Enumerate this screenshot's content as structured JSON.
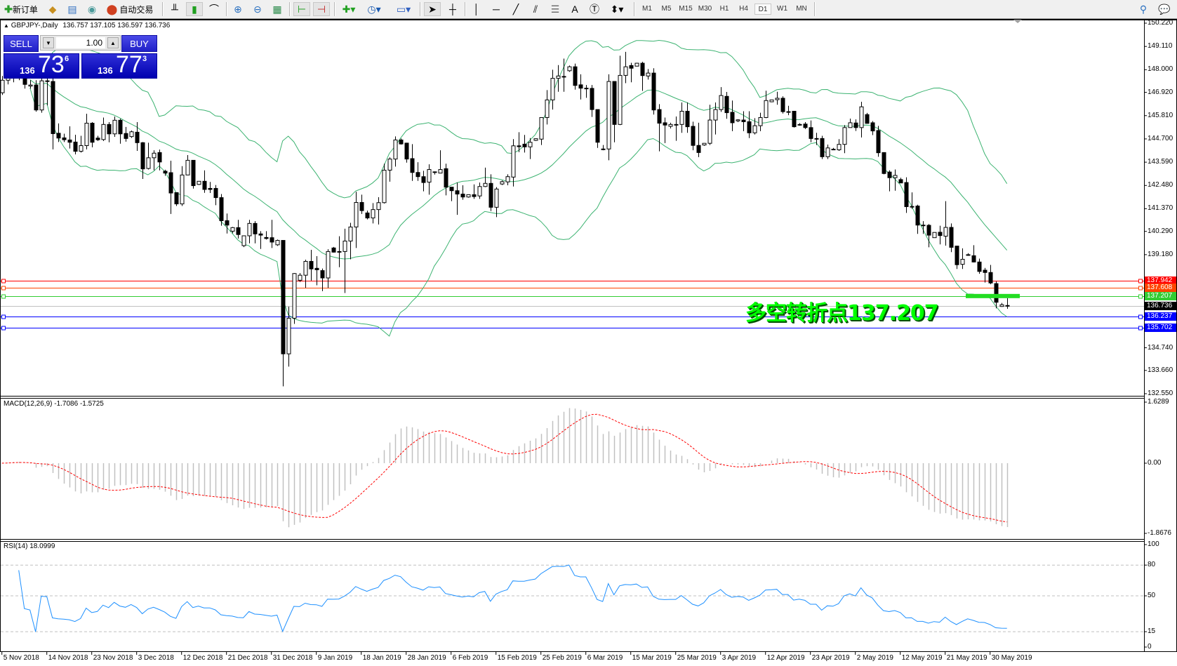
{
  "toolbar": {
    "new_order": "新订单",
    "auto_trading": "自动交易",
    "timeframes": [
      "M1",
      "M5",
      "M15",
      "M30",
      "H1",
      "H4",
      "D1",
      "W1",
      "MN"
    ],
    "active_timeframe": "D1",
    "icons": [
      "new-order-icon",
      "market-watch-icon",
      "data-window-icon",
      "navigator-icon",
      "auto-trading-icon",
      "bar-chart-icon",
      "candlestick-icon",
      "line-chart-icon",
      "zoom-in-icon",
      "zoom-out-icon",
      "tile-windows-icon",
      "auto-scroll-icon",
      "chart-shift-icon",
      "indicators-icon",
      "periods-icon",
      "templates-icon",
      "cursor-icon",
      "crosshair-icon",
      "vertical-line-icon",
      "horizontal-line-icon",
      "trendline-icon",
      "fibonacci-channel-icon",
      "fibonacci-icon",
      "text-icon",
      "text-label-icon",
      "arrows-icon",
      "search-icon",
      "chat-icon"
    ]
  },
  "chart": {
    "symbol_header": "GBPJPY-,Daily",
    "ohlc_header": "136.757 137.105 136.597 136.736"
  },
  "trade_panel": {
    "sell_label": "SELL",
    "buy_label": "BUY",
    "lot": "1.00",
    "sell": {
      "prefix": "136",
      "big": "73",
      "sup": "6"
    },
    "buy": {
      "prefix": "136",
      "big": "77",
      "sup": "3"
    }
  },
  "annotation": {
    "text": "多空转折点137.207",
    "color": "#00ff00"
  },
  "levels": [
    {
      "value": "137.942",
      "color": "#ff0000"
    },
    {
      "value": "137.608",
      "color": "#ff4500"
    },
    {
      "value": "137.207",
      "color": "#32cd32"
    },
    {
      "value": "136.736",
      "color": "#000000",
      "line_color": "#c0c0c0"
    },
    {
      "value": "136.237",
      "color": "#0000ff"
    },
    {
      "value": "135.702",
      "color": "#0000ff"
    }
  ],
  "price_axis": [
    "150.220",
    "149.110",
    "148.000",
    "146.920",
    "145.810",
    "144.700",
    "143.590",
    "142.480",
    "141.370",
    "140.290",
    "139.180",
    "134.740",
    "133.660",
    "132.550"
  ],
  "macd": {
    "label": "MACD(12,26,9) -1.7086 -1.5725",
    "axis": [
      "1.6289",
      "0.00",
      "-1.8676"
    ]
  },
  "rsi": {
    "label": "RSI(14) 18.0999",
    "axis": [
      "100",
      "80",
      "50",
      "15",
      "0"
    ]
  },
  "chart_data": {
    "type": "candlestick",
    "ylim": [
      132.55,
      150.22
    ],
    "bollinger_color": "#3cb371",
    "macd_range": [
      -1.8676,
      1.6289
    ],
    "rsi_levels": [
      80,
      50,
      15
    ],
    "x_tick_labels": [
      "5 Nov 2018",
      "14 Nov 2018",
      "23 Nov 2018",
      "3 Dec 2018",
      "12 Dec 2018",
      "21 Dec 2018",
      "31 Dec 2018",
      "9 Jan 2019",
      "18 Jan 2019",
      "28 Jan 2019",
      "6 Feb 2019",
      "15 Feb 2019",
      "25 Feb 2019",
      "6 Mar 2019",
      "15 Mar 2019",
      "25 Mar 2019",
      "3 Apr 2019",
      "12 Apr 2019",
      "23 Apr 2019",
      "2 May 2019",
      "12 May 2019",
      "21 May 2019",
      "30 May 2019"
    ],
    "ohlc": [
      [
        146.9,
        147.7,
        146.8,
        147.5
      ],
      [
        147.5,
        147.8,
        147.3,
        147.6
      ],
      [
        147.6,
        148.0,
        147.4,
        147.8
      ],
      [
        147.8,
        148.1,
        147.5,
        147.7
      ],
      [
        147.7,
        148.0,
        147.1,
        147.3
      ],
      [
        147.22,
        147.5,
        147.1,
        147.27
      ],
      [
        147.27,
        147.5,
        146.0,
        146.08
      ],
      [
        146.08,
        147.6,
        145.95,
        147.47
      ],
      [
        147.47,
        147.6,
        146.3,
        147.45
      ],
      [
        147.44,
        147.6,
        144.2,
        144.95
      ],
      [
        144.97,
        145.44,
        144.55,
        144.74
      ],
      [
        144.75,
        144.95,
        144.55,
        144.66
      ],
      [
        144.65,
        145.3,
        144.24,
        144.54
      ],
      [
        144.55,
        144.9,
        143.96,
        144.11
      ],
      [
        144.11,
        144.85,
        144.05,
        144.38
      ],
      [
        144.38,
        145.9,
        144.2,
        145.45
      ],
      [
        145.45,
        145.5,
        144.3,
        144.54
      ],
      [
        144.74,
        144.85,
        144.6,
        144.66
      ],
      [
        144.67,
        145.72,
        144.6,
        145.39
      ],
      [
        145.39,
        145.5,
        144.54,
        144.94
      ],
      [
        144.94,
        145.77,
        144.8,
        145.59
      ],
      [
        145.59,
        145.66,
        144.47,
        144.94
      ],
      [
        144.96,
        145.27,
        144.57,
        144.72
      ],
      [
        144.81,
        145.1,
        144.75,
        145.04
      ],
      [
        145.02,
        145.5,
        144.13,
        144.52
      ],
      [
        144.52,
        144.55,
        142.79,
        143.27
      ],
      [
        143.29,
        144.52,
        143.24,
        143.8
      ],
      [
        143.8,
        144.16,
        143.2,
        144.02
      ],
      [
        144.05,
        144.19,
        143.2,
        143.6
      ],
      [
        143.16,
        143.23,
        142.94,
        143.07
      ],
      [
        143.09,
        143.66,
        141.12,
        142.12
      ],
      [
        142.14,
        142.14,
        141.5,
        141.6
      ],
      [
        141.6,
        143.4,
        141.5,
        142.98
      ],
      [
        142.98,
        143.93,
        142.98,
        143.68
      ],
      [
        143.68,
        143.68,
        142.33,
        142.47
      ],
      [
        142.53,
        142.68,
        142.5,
        142.68
      ],
      [
        142.68,
        143.2,
        142.13,
        142.29
      ],
      [
        142.34,
        142.65,
        142.12,
        142.29
      ],
      [
        142.34,
        142.5,
        141.54,
        141.9
      ],
      [
        141.9,
        142.07,
        140.56,
        140.8
      ],
      [
        140.8,
        141.14,
        140.19,
        140.59
      ],
      [
        140.3,
        140.5,
        140.2,
        140.47
      ],
      [
        140.47,
        140.84,
        139.95,
        140.14
      ],
      [
        139.61,
        140.08,
        139.54,
        140.08
      ],
      [
        140.08,
        140.84,
        139.72,
        140.67
      ],
      [
        140.67,
        140.78,
        139.72,
        140.17
      ],
      [
        140.17,
        140.3,
        139.45,
        140.11
      ],
      [
        140.0,
        140.3,
        139.9,
        139.95
      ],
      [
        139.99,
        140.84,
        139.5,
        139.78
      ],
      [
        139.65,
        139.9,
        139.6,
        139.86
      ],
      [
        139.86,
        139.86,
        132.9,
        134.45
      ],
      [
        134.45,
        136.7,
        133.84,
        136.15
      ],
      [
        136.15,
        138.3,
        135.88,
        138.28
      ],
      [
        137.96,
        138.3,
        137.88,
        138.2
      ],
      [
        138.2,
        138.94,
        137.6,
        138.86
      ],
      [
        138.86,
        139.41,
        137.94,
        138.5
      ],
      [
        138.53,
        139.11,
        137.72,
        138.46
      ],
      [
        138.42,
        138.52,
        137.44,
        138.07
      ],
      [
        138.07,
        139.44,
        137.6,
        139.33
      ],
      [
        139.5,
        139.55,
        139.28,
        139.3
      ],
      [
        139.33,
        140.06,
        138.58,
        139.33
      ],
      [
        139.33,
        140.42,
        137.35,
        139.83
      ],
      [
        139.83,
        140.7,
        138.96,
        140.5
      ],
      [
        140.5,
        142.18,
        139.5,
        141.67
      ],
      [
        141.67,
        142.04,
        141.12,
        141.28
      ],
      [
        141.17,
        141.28,
        140.86,
        140.93
      ],
      [
        140.93,
        141.64,
        140.67,
        141.33
      ],
      [
        141.33,
        141.92,
        140.62,
        141.66
      ],
      [
        141.66,
        143.52,
        141.62,
        143.21
      ],
      [
        143.21,
        143.82,
        142.66,
        143.74
      ],
      [
        143.74,
        144.82,
        143.38,
        144.65
      ],
      [
        144.65,
        144.72,
        144.43,
        144.46
      ],
      [
        144.5,
        144.52,
        143.57,
        143.74
      ],
      [
        143.76,
        144.45,
        142.7,
        143.1
      ],
      [
        143.1,
        143.59,
        142.7,
        142.9
      ],
      [
        142.9,
        143.18,
        142.2,
        142.62
      ],
      [
        142.64,
        143.49,
        142.04,
        143.24
      ],
      [
        143.13,
        143.15,
        143.0,
        143.13
      ],
      [
        143.07,
        144.16,
        143.07,
        143.24
      ],
      [
        143.28,
        143.52,
        142.01,
        142.4
      ],
      [
        142.4,
        142.4,
        141.73,
        142.23
      ],
      [
        142.23,
        142.62,
        141.08,
        142.07
      ],
      [
        142.07,
        142.49,
        141.8,
        141.93
      ],
      [
        141.93,
        142.05,
        141.9,
        142.04
      ],
      [
        142.04,
        142.53,
        141.84,
        141.95
      ],
      [
        141.98,
        142.62,
        141.84,
        142.43
      ],
      [
        142.43,
        143.33,
        142.4,
        142.58
      ],
      [
        142.58,
        143.01,
        141.26,
        141.44
      ],
      [
        141.44,
        142.4,
        140.97,
        142.31
      ],
      [
        142.55,
        142.72,
        142.5,
        142.66
      ],
      [
        142.65,
        143.01,
        142.49,
        142.9
      ],
      [
        142.88,
        144.69,
        142.43,
        144.37
      ],
      [
        144.37,
        145.02,
        144.07,
        144.33
      ],
      [
        144.45,
        144.89,
        144.05,
        144.32
      ],
      [
        144.32,
        144.74,
        143.74,
        144.54
      ],
      [
        144.63,
        144.72,
        144.6,
        144.71
      ],
      [
        144.69,
        145.72,
        144.41,
        145.72
      ],
      [
        145.72,
        147.03,
        145.39,
        146.56
      ],
      [
        146.56,
        148.0,
        146.1,
        147.59
      ],
      [
        147.59,
        148.22,
        146.95,
        147.7
      ],
      [
        147.68,
        148.53,
        146.95,
        147.68
      ],
      [
        147.95,
        148.2,
        147.9,
        148.14
      ],
      [
        148.14,
        148.29,
        147.05,
        147.25
      ],
      [
        147.28,
        147.78,
        146.58,
        147.12
      ],
      [
        147.12,
        147.27,
        146.66,
        147.12
      ],
      [
        147.11,
        147.27,
        145.75,
        146.1
      ],
      [
        146.1,
        146.1,
        144.27,
        144.54
      ],
      [
        144.22,
        144.41,
        144.16,
        144.22
      ],
      [
        144.22,
        147.78,
        143.68,
        147.44
      ],
      [
        147.44,
        147.44,
        144.54,
        145.39
      ],
      [
        145.39,
        148.67,
        145.36,
        147.73
      ],
      [
        147.73,
        148.85,
        147.36,
        148.14
      ],
      [
        148.2,
        148.33,
        147.4,
        148.07
      ],
      [
        148.17,
        148.33,
        148.17,
        148.31
      ],
      [
        148.31,
        148.38,
        146.99,
        147.72
      ],
      [
        147.7,
        148.03,
        147.53,
        147.84
      ],
      [
        147.84,
        148.07,
        145.86,
        146.08
      ],
      [
        146.1,
        146.36,
        144.11,
        145.45
      ],
      [
        145.47,
        145.72,
        144.5,
        145.36
      ],
      [
        145.3,
        145.47,
        145.2,
        145.39
      ],
      [
        145.39,
        145.77,
        144.61,
        145.39
      ],
      [
        145.39,
        146.44,
        144.99,
        146.02
      ],
      [
        146.02,
        146.44,
        144.99,
        145.28
      ],
      [
        145.3,
        145.52,
        144.16,
        144.39
      ],
      [
        144.39,
        145.47,
        143.83,
        144.05
      ],
      [
        144.41,
        144.5,
        144.37,
        144.49
      ],
      [
        144.49,
        146.33,
        144.41,
        145.6
      ],
      [
        145.6,
        146.44,
        144.91,
        146.1
      ],
      [
        146.1,
        147.17,
        145.99,
        146.77
      ],
      [
        146.73,
        146.94,
        145.66,
        145.95
      ],
      [
        145.97,
        146.53,
        145.07,
        145.47
      ],
      [
        145.56,
        145.64,
        145.5,
        145.61
      ],
      [
        145.6,
        146.02,
        145.07,
        145.52
      ],
      [
        145.52,
        146.02,
        144.74,
        144.99
      ],
      [
        144.99,
        145.69,
        144.91,
        145.33
      ],
      [
        145.33,
        145.95,
        145.07,
        145.72
      ],
      [
        145.72,
        147.0,
        145.69,
        146.53
      ],
      [
        146.47,
        146.56,
        146.45,
        146.56
      ],
      [
        146.57,
        146.95,
        146.33,
        146.64
      ],
      [
        146.64,
        146.73,
        145.91,
        146.0
      ],
      [
        146.0,
        146.28,
        145.83,
        146.0
      ],
      [
        146.02,
        146.02,
        145.24,
        145.28
      ],
      [
        145.39,
        145.45,
        145.33,
        145.39
      ],
      [
        145.41,
        145.5,
        145.17,
        145.24
      ],
      [
        145.24,
        145.58,
        144.54,
        144.72
      ],
      [
        144.72,
        144.99,
        144.41,
        144.72
      ],
      [
        144.72,
        144.85,
        143.74,
        143.85
      ],
      [
        143.85,
        144.43,
        143.74,
        144.27
      ],
      [
        144.2,
        144.27,
        144.2,
        144.21
      ],
      [
        144.18,
        144.69,
        144.13,
        144.44
      ],
      [
        144.44,
        145.36,
        144.02,
        145.24
      ],
      [
        145.24,
        145.67,
        145.24,
        145.47
      ],
      [
        145.46,
        145.63,
        145.08,
        145.24
      ],
      [
        145.24,
        146.47,
        144.77,
        146.23
      ],
      [
        145.86,
        145.94,
        145.44,
        145.44
      ],
      [
        145.47,
        145.55,
        144.88,
        145.08
      ],
      [
        145.1,
        145.32,
        143.85,
        144.04
      ],
      [
        144.05,
        144.05,
        143.01,
        143.05
      ],
      [
        143.12,
        143.2,
        142.2,
        142.85
      ],
      [
        142.85,
        143.24,
        142.23,
        142.96
      ],
      [
        142.76,
        142.85,
        142.6,
        142.6
      ],
      [
        142.62,
        142.87,
        141.17,
        141.47
      ],
      [
        141.48,
        142.15,
        141.37,
        141.48
      ],
      [
        141.5,
        141.56,
        140.17,
        140.59
      ],
      [
        140.59,
        140.78,
        140.17,
        140.59
      ],
      [
        140.58,
        140.64,
        139.53,
        140.11
      ],
      [
        139.99,
        140.24,
        139.99,
        140.24
      ],
      [
        140.25,
        140.56,
        139.67,
        140.09
      ],
      [
        140.06,
        141.73,
        139.61,
        140.48
      ],
      [
        140.48,
        140.67,
        139.3,
        139.53
      ],
      [
        139.59,
        139.59,
        138.5,
        138.7
      ],
      [
        138.72,
        139.48,
        138.5,
        138.96
      ],
      [
        139.18,
        139.25,
        139.13,
        139.18
      ],
      [
        139.13,
        139.63,
        138.81,
        138.83
      ],
      [
        138.83,
        138.99,
        138.27,
        138.38
      ],
      [
        138.44,
        138.55,
        137.85,
        138.33
      ],
      [
        138.33,
        138.69,
        137.77,
        137.83
      ],
      [
        137.8,
        137.9,
        136.62,
        136.91
      ],
      [
        136.71,
        136.88,
        136.69,
        136.79
      ],
      [
        136.757,
        137.105,
        136.597,
        136.736
      ]
    ]
  }
}
